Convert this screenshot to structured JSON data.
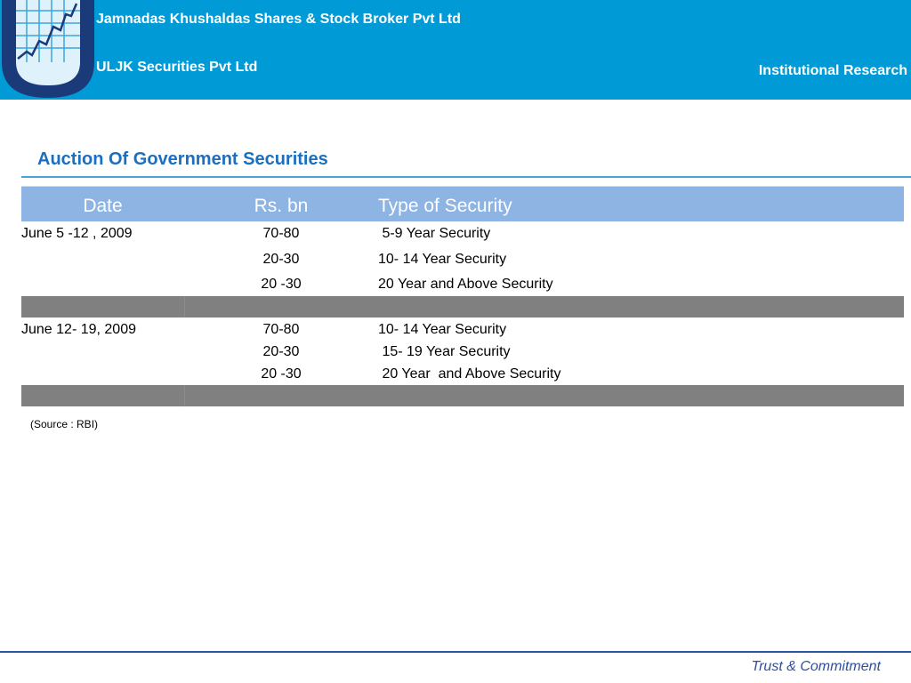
{
  "header": {
    "company_line1": "Jamnadas Khushaldas Shares & Stock Broker Pvt Ltd",
    "company_line2": "ULJK Securities Pvt Ltd",
    "division": "Institutional Research",
    "logo_icon": "uljk-chart-shield-logo",
    "bg_color": "#009ad6"
  },
  "page": {
    "title": "Auction Of Government Securities"
  },
  "table": {
    "columns": [
      "Date",
      "Rs. bn",
      "Type of Security"
    ],
    "header_color": "#8eb4e3",
    "separator_color": "#808080",
    "groups": [
      {
        "date": "June  5 -12 , 2009",
        "rows": [
          {
            "amount": "70-80",
            "type": " 5-9 Year Security"
          },
          {
            "amount": "20-30",
            "type": "10- 14 Year Security"
          },
          {
            "amount": "20 -30",
            "type": "20 Year and Above Security"
          }
        ]
      },
      {
        "date": "June 12- 19, 2009",
        "rows": [
          {
            "amount": "70-80",
            "type": "10- 14 Year Security"
          },
          {
            "amount": "20-30",
            "type": " 15- 19 Year Security"
          },
          {
            "amount": "20 -30",
            "type": " 20 Year  and Above Security"
          }
        ]
      }
    ]
  },
  "source": "(Source : RBI)",
  "footer": {
    "tagline": "Trust & Commitment"
  }
}
